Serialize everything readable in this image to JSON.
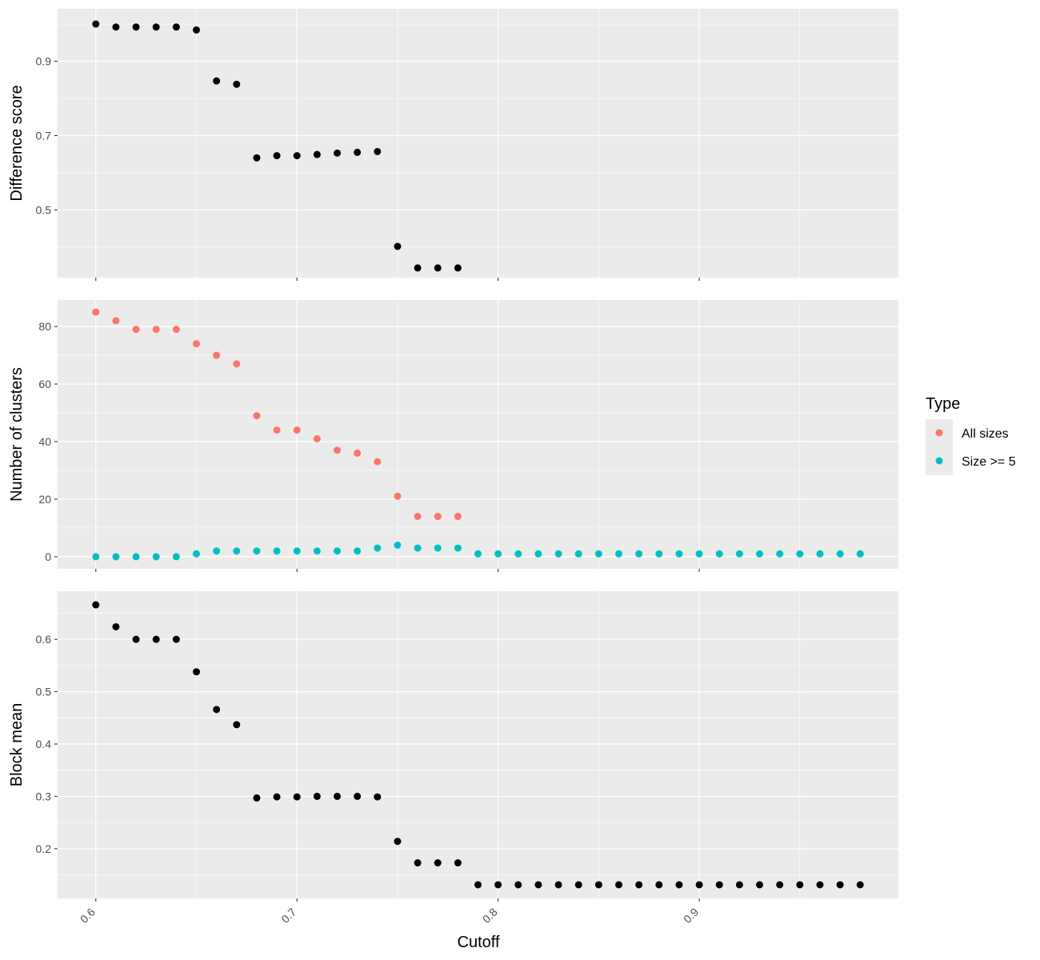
{
  "chart_data": {
    "type": "scatter",
    "xlabel": "Cutoff",
    "x_ticks": [
      0.6,
      0.7,
      0.8,
      0.9
    ],
    "x_tick_labels": [
      "0.6",
      "0.7",
      "0.8",
      "0.9"
    ],
    "xlim": [
      0.581,
      0.999
    ],
    "grid": true,
    "legend": {
      "title": "Type",
      "position": "right",
      "entries": [
        {
          "label": "All sizes",
          "color": "#F8766D"
        },
        {
          "label": "Size >= 5",
          "color": "#00BFC4"
        }
      ]
    },
    "panels": [
      {
        "ylabel": "Difference score",
        "ylim": [
          0.318,
          1.041
        ],
        "y_ticks": [
          0.5,
          0.7,
          0.9
        ],
        "y_tick_labels": [
          "0.5",
          "0.7",
          "0.9"
        ],
        "series": [
          {
            "color": "#000000",
            "x": [
              0.6,
              0.61,
              0.62,
              0.63,
              0.64,
              0.65,
              0.66,
              0.67,
              0.68,
              0.69,
              0.7,
              0.71,
              0.72,
              0.73,
              0.74,
              0.75,
              0.76,
              0.77,
              0.78
            ],
            "y": [
              1.0,
              0.992,
              0.992,
              0.992,
              0.992,
              0.984,
              0.847,
              0.838,
              0.64,
              0.646,
              0.646,
              0.649,
              0.653,
              0.655,
              0.657,
              0.402,
              0.344,
              0.344,
              0.344
            ]
          }
        ]
      },
      {
        "ylabel": "Number of clusters",
        "ylim": [
          -4.2,
          89.2
        ],
        "y_ticks": [
          0,
          20,
          40,
          60,
          80
        ],
        "y_tick_labels": [
          "0",
          "20",
          "40",
          "60",
          "80"
        ],
        "series": [
          {
            "name": "All sizes",
            "color": "#F8766D",
            "x": [
              0.6,
              0.61,
              0.62,
              0.63,
              0.64,
              0.65,
              0.66,
              0.67,
              0.68,
              0.69,
              0.7,
              0.71,
              0.72,
              0.73,
              0.74,
              0.75,
              0.76,
              0.77,
              0.78
            ],
            "y": [
              85,
              82,
              79,
              79,
              79,
              74,
              70,
              67,
              49,
              44,
              44,
              41,
              37,
              36,
              33,
              21,
              14,
              14,
              14
            ]
          },
          {
            "name": "Size >= 5",
            "color": "#00BFC4",
            "x": [
              0.6,
              0.61,
              0.62,
              0.63,
              0.64,
              0.65,
              0.66,
              0.67,
              0.68,
              0.69,
              0.7,
              0.71,
              0.72,
              0.73,
              0.74,
              0.75,
              0.76,
              0.77,
              0.78,
              0.79,
              0.8,
              0.81,
              0.82,
              0.83,
              0.84,
              0.85,
              0.86,
              0.87,
              0.88,
              0.89,
              0.9,
              0.91,
              0.92,
              0.93,
              0.94,
              0.95,
              0.96,
              0.97,
              0.98
            ],
            "y": [
              0,
              0,
              0,
              0,
              0,
              1,
              2,
              2,
              2,
              2,
              2,
              2,
              2,
              2,
              3,
              4,
              3,
              3,
              3,
              1,
              1,
              1,
              1,
              1,
              1,
              1,
              1,
              1,
              1,
              1,
              1,
              1,
              1,
              1,
              1,
              1,
              1,
              1,
              1
            ]
          }
        ]
      },
      {
        "ylabel": "Block mean",
        "ylim": [
          0.105,
          0.692
        ],
        "y_ticks": [
          0.2,
          0.3,
          0.4,
          0.5,
          0.6
        ],
        "y_tick_labels": [
          "0.2",
          "0.3",
          "0.4",
          "0.5",
          "0.6"
        ],
        "series": [
          {
            "color": "#000000",
            "x": [
              0.6,
              0.61,
              0.62,
              0.63,
              0.64,
              0.65,
              0.66,
              0.67,
              0.68,
              0.69,
              0.7,
              0.71,
              0.72,
              0.73,
              0.74,
              0.75,
              0.76,
              0.77,
              0.78,
              0.79,
              0.8,
              0.81,
              0.82,
              0.83,
              0.84,
              0.85,
              0.86,
              0.87,
              0.88,
              0.89,
              0.9,
              0.91,
              0.92,
              0.93,
              0.94,
              0.95,
              0.96,
              0.97,
              0.98
            ],
            "y": [
              0.666,
              0.624,
              0.6,
              0.6,
              0.6,
              0.538,
              0.466,
              0.437,
              0.297,
              0.299,
              0.299,
              0.3,
              0.3,
              0.3,
              0.299,
              0.214,
              0.173,
              0.173,
              0.173,
              0.131,
              0.131,
              0.131,
              0.131,
              0.131,
              0.131,
              0.131,
              0.131,
              0.131,
              0.131,
              0.131,
              0.131,
              0.131,
              0.131,
              0.131,
              0.131,
              0.131,
              0.131,
              0.131,
              0.131
            ]
          }
        ]
      }
    ]
  }
}
